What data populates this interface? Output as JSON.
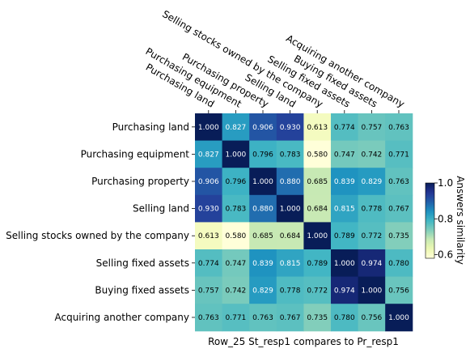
{
  "chart_data": {
    "type": "heatmap",
    "rows": [
      "Purchasing land",
      "Purchasing equipment",
      "Purchasing property",
      "Selling land",
      "Selling stocks owned by the company",
      "Selling fixed assets",
      "Buying fixed assets",
      "Acquiring another company"
    ],
    "columns": [
      "Purchasing land",
      "Purchasing equipment",
      "Purchasing property",
      "Selling land",
      "Selling stocks owned by the company",
      "Selling fixed assets",
      "Buying fixed assets",
      "Acquiring another company"
    ],
    "values": [
      [
        1.0,
        0.827,
        0.906,
        0.93,
        0.613,
        0.774,
        0.757,
        0.763
      ],
      [
        0.827,
        1.0,
        0.796,
        0.783,
        0.58,
        0.747,
        0.742,
        0.771
      ],
      [
        0.906,
        0.796,
        1.0,
        0.88,
        0.685,
        0.839,
        0.829,
        0.763
      ],
      [
        0.93,
        0.783,
        0.88,
        1.0,
        0.684,
        0.815,
        0.778,
        0.767
      ],
      [
        0.613,
        0.58,
        0.685,
        0.684,
        1.0,
        0.789,
        0.772,
        0.735
      ],
      [
        0.774,
        0.747,
        0.839,
        0.815,
        0.789,
        1.0,
        0.974,
        0.78
      ],
      [
        0.757,
        0.742,
        0.829,
        0.778,
        0.772,
        0.974,
        1.0,
        0.756
      ],
      [
        0.763,
        0.771,
        0.763,
        0.767,
        0.735,
        0.78,
        0.756,
        1.0
      ]
    ],
    "value_labels": [
      [
        "1.000",
        "0.827",
        "0.906",
        "0.930",
        "0.613",
        "0.774",
        "0.757",
        "0.763"
      ],
      [
        "0.827",
        "1.000",
        "0.796",
        "0.783",
        "0.580",
        "0.747",
        "0.742",
        "0.771"
      ],
      [
        "0.906",
        "0.796",
        "1.000",
        "0.880",
        "0.685",
        "0.839",
        "0.829",
        "0.763"
      ],
      [
        "0.930",
        "0.783",
        "0.880",
        "1.000",
        "0.684",
        "0.815",
        "0.778",
        "0.767"
      ],
      [
        "0.613",
        "0.580",
        "0.685",
        "0.684",
        "1.000",
        "0.789",
        "0.772",
        "0.735"
      ],
      [
        "0.774",
        "0.747",
        "0.839",
        "0.815",
        "0.789",
        "1.000",
        "0.974",
        "0.780"
      ],
      [
        "0.757",
        "0.742",
        "0.829",
        "0.778",
        "0.772",
        "0.974",
        "1.000",
        "0.756"
      ],
      [
        "0.763",
        "0.771",
        "0.763",
        "0.767",
        "0.735",
        "0.780",
        "0.756",
        "1.000"
      ]
    ],
    "xlabel": "Row_25 St_resp1 compares to Pr_resp1",
    "colorbar": {
      "label": "Answers similarity",
      "range": [
        0.58,
        1.0
      ],
      "ticks": [
        0.6,
        0.8,
        1.0
      ],
      "tick_labels": [
        "0.6",
        "0.8",
        "1.0"
      ],
      "colormap": "YlGnBu"
    },
    "x_tick_position": "top"
  }
}
